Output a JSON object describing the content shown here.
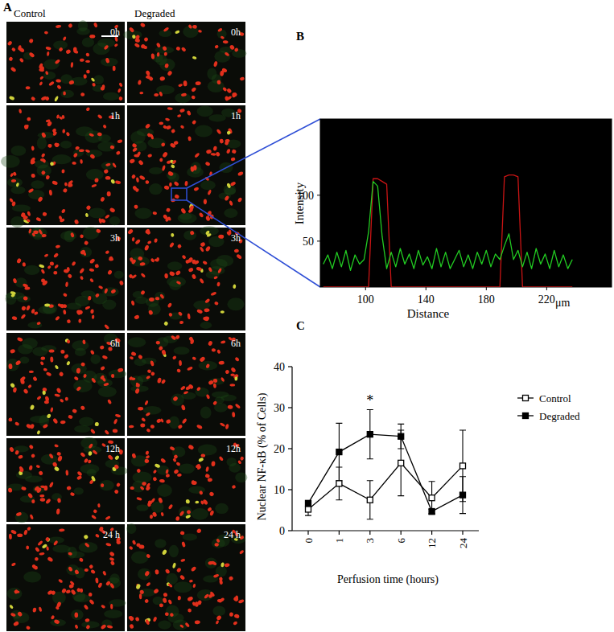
{
  "micrographs": {
    "label": "A",
    "columns": [
      "Control",
      "Degraded"
    ],
    "rows": [
      "0h",
      "1h",
      "3h",
      "6h",
      "12h",
      "24 h"
    ]
  },
  "chart_data": [
    {
      "type": "line",
      "title": "B",
      "x_label": "Distance",
      "x_unit": "μm",
      "y_label": "Intensity",
      "x": [
        72,
        75,
        78,
        81,
        84,
        87,
        90,
        93,
        96,
        99,
        102,
        105,
        108,
        111,
        114,
        117,
        120,
        123,
        126,
        129,
        132,
        135,
        138,
        141,
        144,
        147,
        150,
        153,
        156,
        159,
        162,
        165,
        168,
        171,
        174,
        177,
        180,
        183,
        186,
        189,
        192,
        195,
        198,
        201,
        204,
        207,
        210,
        213,
        216,
        219,
        222,
        225,
        228,
        231,
        234,
        237
      ],
      "xlim": [
        70,
        263
      ],
      "xticks": [
        100,
        140,
        180,
        220
      ],
      "ylim": [
        0,
        183
      ],
      "yticks": [
        50,
        100
      ],
      "series": [
        {
          "color": "#c81414",
          "values": [
            0,
            0,
            0,
            0,
            0,
            0,
            0,
            0,
            0,
            0,
            0,
            118,
            118,
            115,
            112,
            0,
            0,
            0,
            0,
            0,
            0,
            0,
            0,
            0,
            0,
            0,
            0,
            0,
            0,
            0,
            0,
            0,
            0,
            0,
            0,
            0,
            0,
            0,
            0,
            0,
            120,
            122,
            122,
            120,
            0,
            0,
            0,
            0,
            0,
            0,
            0,
            0,
            0,
            0,
            0,
            0
          ]
        },
        {
          "color": "#22cc22",
          "values": [
            25,
            35,
            20,
            38,
            22,
            40,
            18,
            35,
            25,
            30,
            60,
            115,
            110,
            55,
            20,
            38,
            22,
            42,
            25,
            36,
            20,
            40,
            24,
            33,
            20,
            42,
            22,
            38,
            20,
            30,
            40,
            22,
            35,
            20,
            38,
            25,
            40,
            22,
            36,
            30,
            45,
            58,
            30,
            40,
            22,
            38,
            20,
            42,
            25,
            36,
            20,
            40,
            22,
            35,
            20,
            30
          ]
        }
      ]
    },
    {
      "type": "line",
      "title": "C",
      "x_label": "Perfusion time (hours)",
      "y_label": "Nuclear NF-κB (% of Cells)",
      "categories": [
        "0",
        "1",
        "3",
        "6",
        "12",
        "24"
      ],
      "ylim": [
        0,
        40
      ],
      "yticks": [
        0,
        10,
        20,
        30,
        40
      ],
      "legend": "top-right",
      "series": [
        {
          "name": "Control",
          "color": "#000000",
          "marker": "open-square",
          "values": [
            5.2,
            11.5,
            7.5,
            16.5,
            8.0,
            15.8
          ],
          "errors": [
            1.5,
            4.0,
            4.7,
            8.0,
            4.0,
            8.7
          ]
        },
        {
          "name": "Degraded",
          "color": "#000000",
          "marker": "filled-square",
          "values": [
            6.7,
            19.2,
            23.5,
            23.0,
            4.7,
            8.7
          ],
          "errors": [
            0.5,
            7.0,
            6.0,
            3.0,
            0.5,
            4.5
          ]
        }
      ],
      "annotations": [
        {
          "text": "*",
          "category": "3"
        }
      ]
    }
  ]
}
